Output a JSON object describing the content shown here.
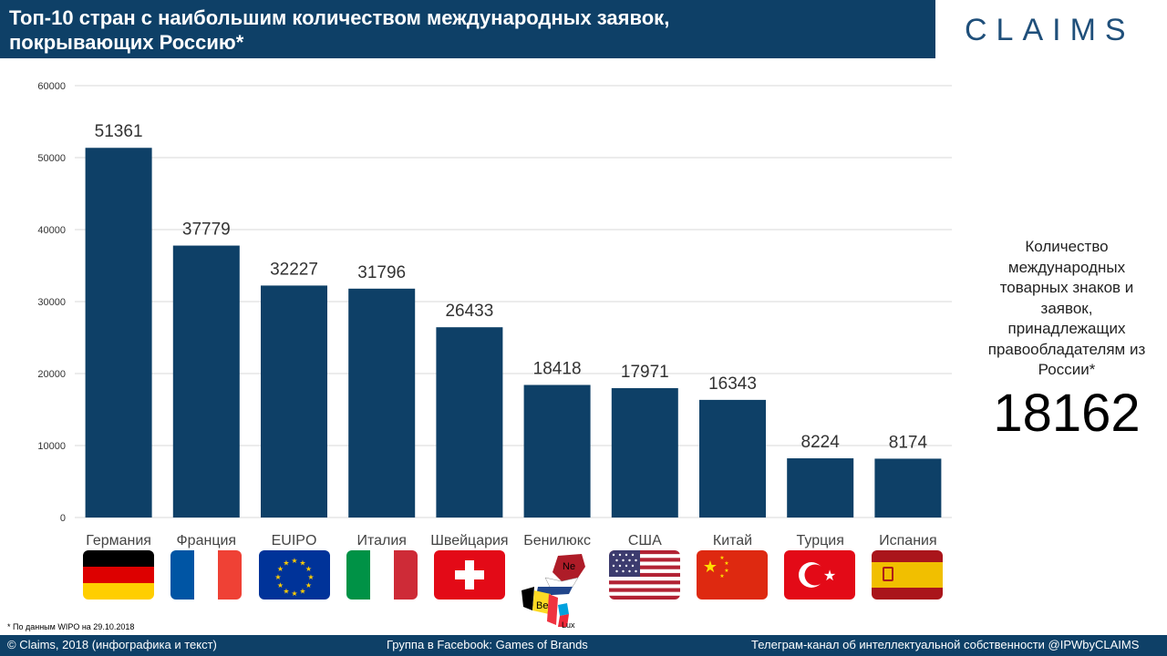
{
  "header": {
    "title": "Топ-10 стран с наибольшим количеством международных заявок,\nпокрывающих Россию*",
    "logo": "CLAIMS"
  },
  "chart_data": {
    "type": "bar",
    "categories": [
      "Германия",
      "Франция",
      "EUIPO",
      "Италия",
      "Швейцария",
      "Бенилюкс",
      "США",
      "Китай",
      "Турция",
      "Испания"
    ],
    "values": [
      51361,
      37779,
      32227,
      31796,
      26433,
      18418,
      17971,
      16343,
      8224,
      8174
    ],
    "title": "Топ-10 стран с наибольшим количеством международных заявок, покрывающих Россию*",
    "xlabel": "",
    "ylabel": "",
    "ylim": [
      0,
      60000
    ],
    "yticks": [
      0,
      10000,
      20000,
      30000,
      40000,
      50000,
      60000
    ],
    "grid": true,
    "bar_color": "#0e4067"
  },
  "flags": [
    "germany-flag",
    "france-flag",
    "eu-flag",
    "italy-flag",
    "switzerland-flag",
    "benelux-map",
    "usa-flag",
    "china-flag",
    "turkey-flag",
    "spain-flag"
  ],
  "benelux_labels": [
    "Ne",
    "Be",
    "Lux"
  ],
  "sidebar": {
    "label": "Количество\nмеждународных\nтоварных знаков и\nзаявок,\nпринадлежащих\nправообладателям из\nРоссии*",
    "value": "18162"
  },
  "footnote": "* По данным WIPO на 29.10.2018",
  "footer": {
    "copyright": "© Claims, 2018",
    "copyright_note": "(инфографика и текст)",
    "facebook": "Группа в Facebook: Games of Brands",
    "telegram": "Телеграм-канал  об интеллектуальной  собственности  @IPWbyCLAIMS"
  },
  "colors": {
    "header_bg": "#0e4067",
    "bar": "#0e4067",
    "grid": "#d9d9d9"
  }
}
